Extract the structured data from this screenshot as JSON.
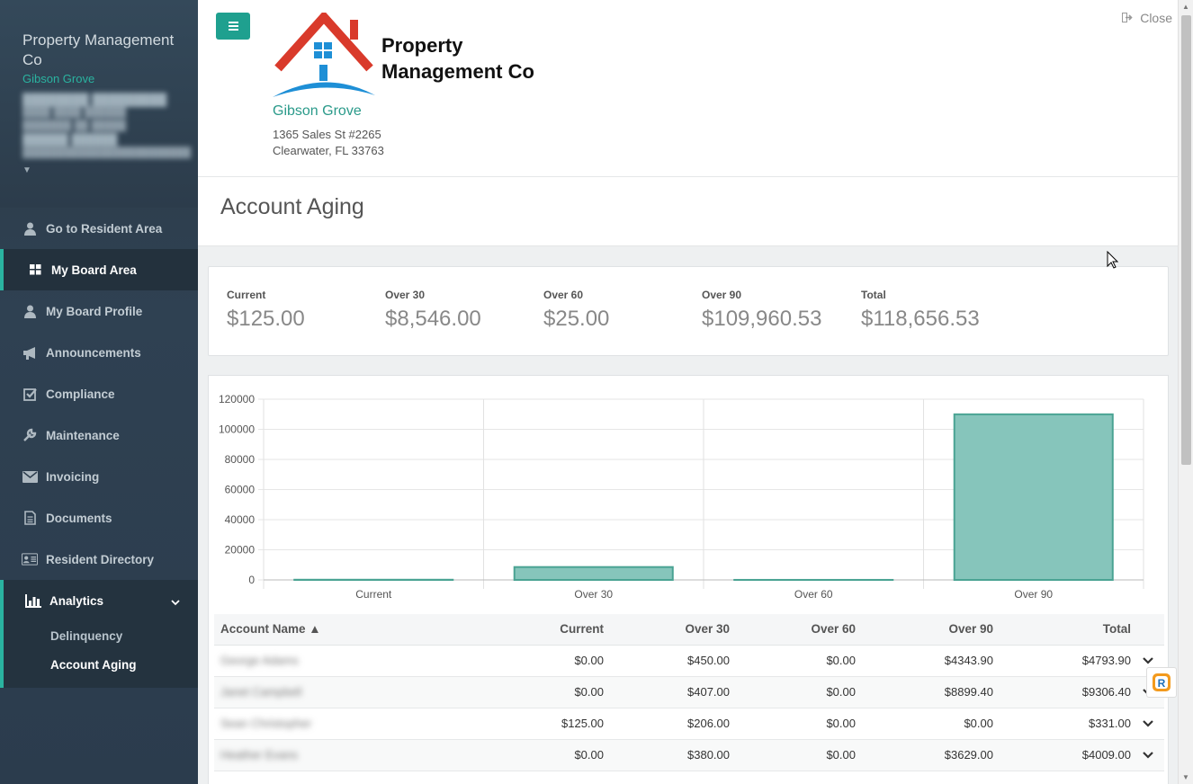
{
  "sidebar": {
    "company": "Property Management Co",
    "community": "Gibson Grove",
    "nav": [
      {
        "label": "Go to Resident Area",
        "icon": "user-icon"
      },
      {
        "label": "My Board Area",
        "icon": "grid-icon",
        "active": true
      },
      {
        "label": "My Board Profile",
        "icon": "user-icon"
      },
      {
        "label": "Announcements",
        "icon": "bullhorn-icon"
      },
      {
        "label": "Compliance",
        "icon": "check-square-icon"
      },
      {
        "label": "Maintenance",
        "icon": "wrench-icon"
      },
      {
        "label": "Invoicing",
        "icon": "envelope-icon"
      },
      {
        "label": "Documents",
        "icon": "document-icon"
      },
      {
        "label": "Resident Directory",
        "icon": "id-card-icon"
      }
    ],
    "analytics": {
      "label": "Analytics",
      "icon": "bar-chart-icon",
      "sub": [
        {
          "label": "Delinquency"
        },
        {
          "label": "Account Aging",
          "active": true
        }
      ]
    }
  },
  "header": {
    "logo_text_line1": "Property",
    "logo_text_line2": "Management Co",
    "community": "Gibson Grove",
    "address_line1": "1365 Sales St #2265",
    "address_line2": "Clearwater, FL 33763",
    "close_label": "Close"
  },
  "page_title": "Account Aging",
  "summary": [
    {
      "label": "Current",
      "value": "$125.00"
    },
    {
      "label": "Over 30",
      "value": "$8,546.00"
    },
    {
      "label": "Over 60",
      "value": "$25.00"
    },
    {
      "label": "Over 90",
      "value": "$109,960.53"
    },
    {
      "label": "Total",
      "value": "$118,656.53"
    }
  ],
  "chart_data": {
    "type": "bar",
    "categories": [
      "Current",
      "Over 30",
      "Over 60",
      "Over 90"
    ],
    "values": [
      125,
      8546,
      25,
      109960.53
    ],
    "ylim": [
      0,
      120000
    ],
    "yticks": [
      0,
      20000,
      40000,
      60000,
      80000,
      100000,
      120000
    ],
    "grid": true,
    "bar_color": "#86c5bb",
    "bar_border": "#4aa393"
  },
  "table": {
    "columns": [
      "Account Name ▲",
      "Current",
      "Over 30",
      "Over 60",
      "Over 90",
      "Total"
    ],
    "rows": [
      [
        "George Adams",
        "$0.00",
        "$450.00",
        "$0.00",
        "$4343.90",
        "$4793.90"
      ],
      [
        "Janet Campbell",
        "$0.00",
        "$407.00",
        "$0.00",
        "$8899.40",
        "$9306.40"
      ],
      [
        "Sean Christopher",
        "$125.00",
        "$206.00",
        "$0.00",
        "$0.00",
        "$331.00"
      ],
      [
        "Heather Evans",
        "$0.00",
        "$380.00",
        "$0.00",
        "$3629.00",
        "$4009.00"
      ]
    ]
  },
  "colors": {
    "accent": "#2ab3a0",
    "sidebar": "#2e3e4e",
    "roof": "#d93a2b",
    "window": "#1e8fd6"
  }
}
